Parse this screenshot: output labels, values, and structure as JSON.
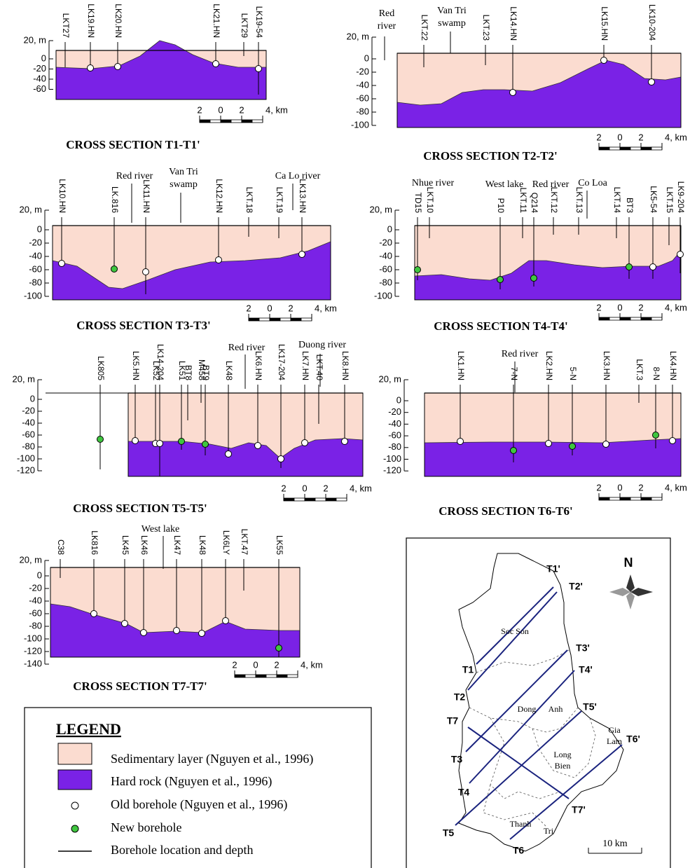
{
  "sections": [
    {
      "title": "CROSS SECTION T1-T1'",
      "y_ticks": [
        "20, m",
        "0",
        "-20",
        "-40",
        "-60"
      ],
      "boreholes": [
        "LKT27",
        "LK19.HN",
        "LK20.HN",
        "LK21.HN",
        "LKT29",
        "LK19-54"
      ],
      "features": [],
      "scale": [
        "2",
        "0",
        "2",
        "4, km"
      ]
    },
    {
      "title": "CROSS SECTION T2-T2'",
      "y_ticks": [
        "20, m",
        "0",
        "-20",
        "-40",
        "-60",
        "-80",
        "-100"
      ],
      "boreholes": [
        "LKT.22",
        "LKT.23",
        "LK14.HN",
        "LK15.HN",
        "LK10-204"
      ],
      "features": [
        [
          "Red",
          "river"
        ],
        [
          "Van Tri",
          "swamp"
        ]
      ],
      "scale": [
        "2",
        "0",
        "2",
        "4, km"
      ]
    },
    {
      "title": "CROSS SECTION T3-T3'",
      "y_ticks": [
        "20, m",
        "0",
        "-20",
        "-40",
        "-60",
        "-80",
        "-100"
      ],
      "boreholes": [
        "LK10.HN",
        "LK.816",
        "LK11.HN",
        "LK12.HN",
        "LKT.18",
        "LKT.19",
        "LK13.HN"
      ],
      "features": [
        [
          "Red river"
        ],
        [
          "Van Tri",
          "swamp"
        ],
        [
          "Ca Lo river"
        ]
      ],
      "scale": [
        "2",
        "0",
        "2",
        "4, km"
      ]
    },
    {
      "title": "CROSS SECTION T4-T4'",
      "y_ticks": [
        "20, m",
        "0",
        "-20",
        "-40",
        "-60",
        "-80",
        "-100"
      ],
      "boreholes": [
        "TD15",
        "LKT.10",
        "P10",
        "LKT.11",
        "Q214",
        "LKT.12",
        "LKT.13",
        "LKT.14",
        "BT3",
        "LK5-54",
        "LKT.15",
        "LK9-204"
      ],
      "features": [
        [
          "Nhue river"
        ],
        [
          "West lake"
        ],
        [
          "Red river"
        ],
        [
          "Co Loa"
        ]
      ],
      "scale": [
        "2",
        "0",
        "2",
        "4, km"
      ]
    },
    {
      "title": "CROSS SECTION T5-T5'",
      "y_ticks": [
        "20, m",
        "0",
        "-20",
        "-40",
        "-60",
        "-80",
        "-100",
        "-120"
      ],
      "boreholes": [
        "LK805",
        "LK5.HN",
        "LK52",
        "LK14-204",
        "LK51",
        "BT8",
        "M458",
        "BT9",
        "LK48",
        "LK6.HN",
        "LK17-204",
        "LK7.HN",
        "LKT.40",
        "LK8.HN"
      ],
      "features": [
        [
          "Red river"
        ],
        [
          "Duong river"
        ]
      ],
      "scale": [
        "2",
        "0",
        "2",
        "4, km"
      ]
    },
    {
      "title": "CROSS SECTION T6-T6'",
      "y_ticks": [
        "20, m",
        "0",
        "-20",
        "-40",
        "-60",
        "-80",
        "-100",
        "-120"
      ],
      "boreholes": [
        "LK1.HN",
        "7-N",
        "LK2.HN",
        "5-N",
        "LK3.HN",
        "LKT.3",
        "8-N",
        "LK4.HN"
      ],
      "features": [
        [
          "Red river"
        ]
      ],
      "scale": [
        "2",
        "0",
        "2",
        "4, km"
      ]
    },
    {
      "title": "CROSS SECTION T7-T7'",
      "y_ticks": [
        "20, m",
        "0",
        "-20",
        "-40",
        "-60",
        "-80",
        "-100",
        "-120",
        "-140"
      ],
      "boreholes": [
        "C38",
        "LK816",
        "LK45",
        "LK46",
        "LK47",
        "LK48",
        "LK6LY",
        "LKT.47",
        "LK55"
      ],
      "features": [
        [
          "West lake"
        ]
      ],
      "scale": [
        "2",
        "0",
        "2",
        "4, km"
      ]
    }
  ],
  "legend": {
    "title": "LEGEND",
    "items": [
      "Sedimentary layer (Nguyen et al., 1996)",
      "Hard rock (Nguyen et al., 1996)",
      "Old borehole (Nguyen et al., 1996)",
      "New borehole",
      "Borehole location and depth"
    ]
  },
  "map": {
    "north": "N",
    "section_ends": [
      "T1'",
      "T2'",
      "T3'",
      "T4'",
      "T5'",
      "T6'",
      "T7'",
      "T1",
      "T2",
      "T7",
      "T3",
      "T4",
      "T5",
      "T6"
    ],
    "places": [
      [
        "Soc Son"
      ],
      [
        "Dong",
        "Anh"
      ],
      [
        "Gia",
        "Lam"
      ],
      [
        "Long",
        "Bien"
      ],
      [
        "Thanh",
        "Tri"
      ]
    ],
    "scale": "10 km"
  }
}
